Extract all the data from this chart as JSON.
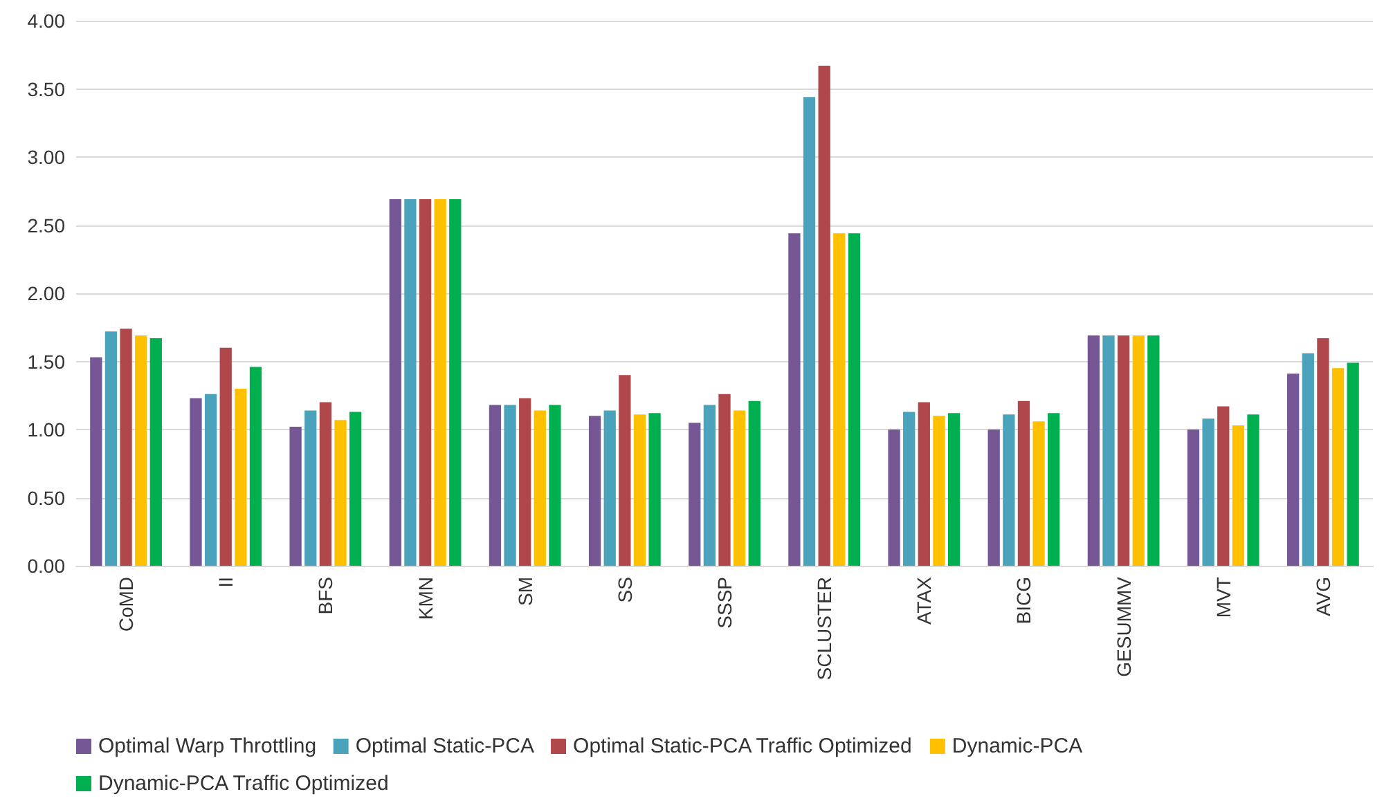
{
  "chart_data": {
    "type": "bar",
    "categories": [
      "CoMD",
      "II",
      "BFS",
      "KMN",
      "SM",
      "SS",
      "SSSP",
      "SCLUSTER",
      "ATAX",
      "BICG",
      "GESUMMV",
      "MVT",
      "AVG"
    ],
    "series": [
      {
        "name": "Optimal Warp Throttling",
        "color": "#765796",
        "values": [
          1.53,
          1.23,
          1.02,
          2.69,
          1.18,
          1.1,
          1.05,
          2.44,
          1.0,
          1.0,
          1.69,
          1.0,
          1.41
        ]
      },
      {
        "name": "Optimal Static-PCA",
        "color": "#4ba3bb",
        "values": [
          1.72,
          1.26,
          1.14,
          2.69,
          1.18,
          1.14,
          1.18,
          3.44,
          1.13,
          1.11,
          1.69,
          1.08,
          1.56
        ]
      },
      {
        "name": "Optimal Static-PCA Traffic Optimized",
        "color": "#b0474a",
        "values": [
          1.74,
          1.6,
          1.2,
          2.69,
          1.23,
          1.4,
          1.26,
          3.67,
          1.2,
          1.21,
          1.69,
          1.17,
          1.67
        ]
      },
      {
        "name": "Dynamic-PCA",
        "color": "#ffc000",
        "values": [
          1.69,
          1.3,
          1.07,
          2.69,
          1.14,
          1.11,
          1.14,
          2.44,
          1.1,
          1.06,
          1.69,
          1.03,
          1.45
        ]
      },
      {
        "name": "Dynamic-PCA Traffic Optimized",
        "color": "#00b050",
        "values": [
          1.67,
          1.46,
          1.13,
          2.69,
          1.18,
          1.12,
          1.21,
          2.44,
          1.12,
          1.12,
          1.69,
          1.11,
          1.49
        ]
      }
    ],
    "ylim": [
      0,
      4
    ],
    "yticks": [
      {
        "value": 0,
        "label": "0.00"
      },
      {
        "value": 0.5,
        "label": "0.50"
      },
      {
        "value": 1,
        "label": "1.00"
      },
      {
        "value": 1.5,
        "label": "1.50"
      },
      {
        "value": 2,
        "label": "2.00"
      },
      {
        "value": 2.5,
        "label": "2.50"
      },
      {
        "value": 3,
        "label": "3.00"
      },
      {
        "value": 3.5,
        "label": "3.50"
      },
      {
        "value": 4,
        "label": "4.00"
      }
    ],
    "grid": "y",
    "legend": "bottom"
  }
}
